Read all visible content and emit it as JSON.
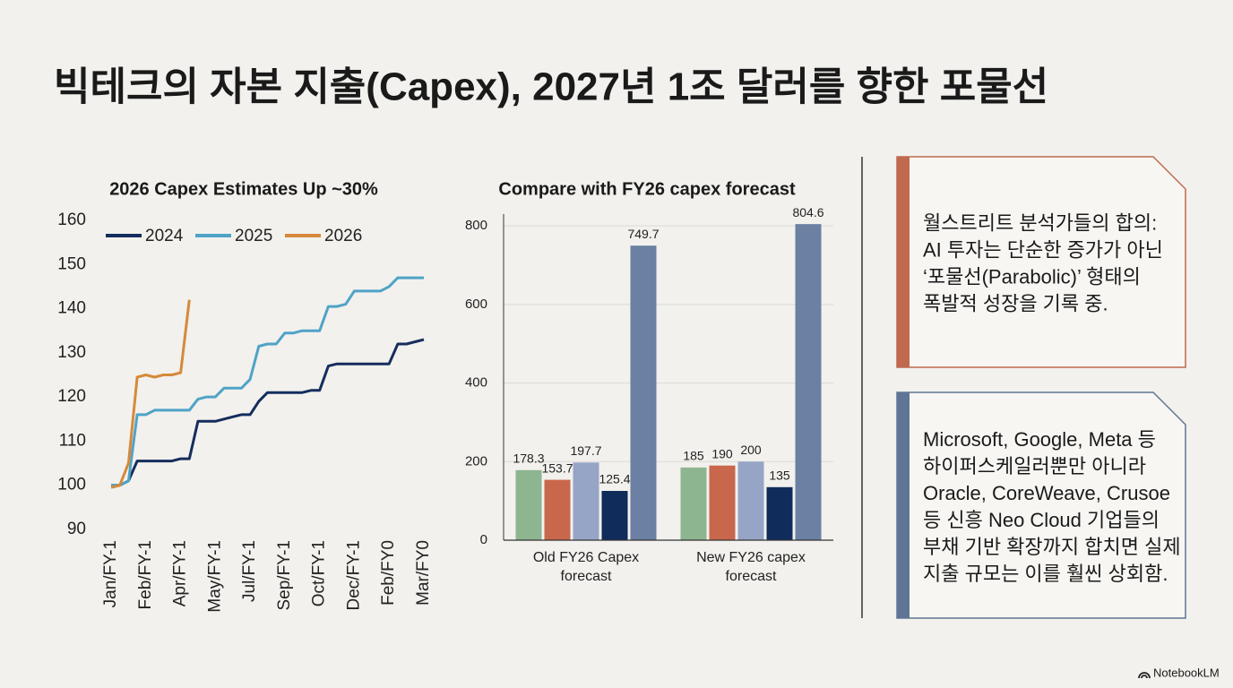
{
  "title": "빅테크의 자본 지출(Capex), 2027년 1조 달러를 향한 포물선",
  "chart_data": [
    {
      "type": "line",
      "title": "2026 Capex Estimates Up ~30%",
      "categories": [
        "Jan/FY-1",
        null,
        null,
        null,
        "Feb/FY-1",
        null,
        null,
        null,
        "Apr/FY-1",
        null,
        null,
        null,
        "May/FY-1",
        null,
        null,
        null,
        "Jul/FY-1",
        null,
        null,
        null,
        "Sep/FY-1",
        null,
        null,
        null,
        "Oct/FY-1",
        null,
        null,
        null,
        "Dec/FY-1",
        null,
        null,
        null,
        "Feb/FY0",
        null,
        null,
        null,
        "Mar/FY0"
      ],
      "series": [
        {
          "name": "2024",
          "color": "#152d5e",
          "values": [
            100,
            100,
            101,
            105.5,
            105.5,
            105.5,
            105.5,
            105.5,
            106,
            106,
            114.5,
            114.5,
            114.5,
            115,
            115.5,
            116,
            116,
            119,
            121,
            121,
            121,
            121,
            121,
            121.5,
            121.5,
            127,
            127.5,
            127.5,
            127.5,
            127.5,
            127.5,
            127.5,
            127.5,
            132,
            132,
            132.5,
            133
          ]
        },
        {
          "name": "2025",
          "color": "#4fa3c7",
          "values": [
            100,
            100,
            101,
            116,
            116,
            117,
            117,
            117,
            117,
            117,
            119.5,
            120,
            120,
            122,
            122,
            122,
            124,
            131.5,
            132,
            132,
            134.5,
            134.5,
            135,
            135,
            135,
            140.5,
            140.5,
            141,
            144,
            144,
            144,
            144,
            145,
            147,
            147,
            147,
            147
          ]
        },
        {
          "name": "2026",
          "color": "#d6893a",
          "values": [
            99.5,
            100,
            105,
            124.5,
            125,
            124.5,
            125,
            125,
            125.5,
            142,
            null,
            null,
            null,
            null,
            null,
            null,
            null,
            null,
            null,
            null,
            null,
            null,
            null,
            null,
            null,
            null,
            null,
            null,
            null,
            null,
            null,
            null,
            null,
            null,
            null,
            null,
            null
          ]
        }
      ],
      "ylim": [
        90,
        160
      ],
      "yticks": [
        90,
        100,
        110,
        120,
        130,
        140,
        150,
        160
      ],
      "grid": false,
      "legend": "top"
    },
    {
      "type": "bar",
      "title": "Compare with FY26 capex forecast",
      "categories": [
        "Old FY26 Capex forecast",
        "New FY26 capex forecast"
      ],
      "series": [
        {
          "color": "#8db58f",
          "values": [
            178.3,
            185
          ]
        },
        {
          "color": "#c9674d",
          "values": [
            153.7,
            190
          ]
        },
        {
          "color": "#96a5c6",
          "values": [
            197.7,
            200
          ]
        },
        {
          "color": "#0f2c5b",
          "values": [
            125.4,
            135
          ]
        },
        {
          "color": "#6b80a2",
          "values": [
            749.7,
            804.6
          ]
        }
      ],
      "ylim": [
        0,
        830
      ],
      "yticks": [
        0,
        200,
        400,
        600,
        800
      ],
      "grid": true
    }
  ],
  "cards": [
    {
      "color": "#c0694f",
      "lines": [
        "월스트리트 분석가들의 합의:",
        "AI 투자는 단순한 증가가 아닌",
        "‘포물선(Parabolic)’ 형태의",
        "폭발적 성장을 기록 중."
      ]
    },
    {
      "color": "#5f7595",
      "lines": [
        "Microsoft, Google, Meta 등",
        "하이퍼스케일러뿐만 아니라",
        "Oracle, CoreWeave, Crusoe",
        "등 신흥 Neo Cloud 기업들의",
        "부채 기반 확장까지 합치면 실제",
        "지출 규모는 이를 훨씬 상회함."
      ]
    }
  ],
  "brand": "NotebookLM"
}
